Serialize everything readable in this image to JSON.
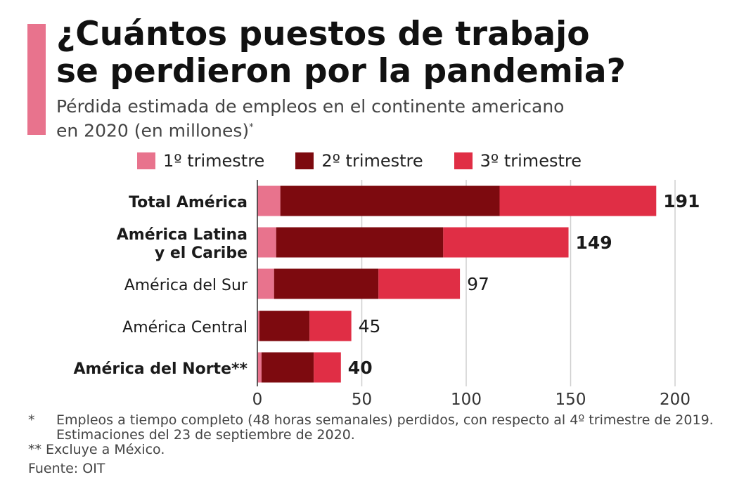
{
  "header": {
    "title_line1": "¿Cuántos puestos de trabajo",
    "title_line2": "se perdieron por la pandemia?",
    "subtitle_line1": "Pérdida estimada de empleos en el continente americano",
    "subtitle_line2": "en 2020 (en millones)",
    "subtitle_mark": "*"
  },
  "colors": {
    "accent": "#e8738d",
    "q1": "#e8738d",
    "q2": "#7d0a0f",
    "q3": "#e02e45",
    "grid": "#cfcfcf"
  },
  "legend": [
    {
      "label": "1º trimestre",
      "color": "#e8738d"
    },
    {
      "label": "2º trimestre",
      "color": "#7d0a0f"
    },
    {
      "label": "3º trimestre",
      "color": "#e02e45"
    }
  ],
  "chart_data": {
    "type": "bar",
    "orientation": "horizontal",
    "stacked": true,
    "categories": [
      {
        "label": [
          "Total América"
        ],
        "bold": true
      },
      {
        "label": [
          "América Latina",
          "y el Caribe"
        ],
        "bold": true
      },
      {
        "label": [
          "América del Sur"
        ],
        "bold": false
      },
      {
        "label": [
          "América Central"
        ],
        "bold": false
      },
      {
        "label": [
          "América del Norte**"
        ],
        "bold": true
      }
    ],
    "series": [
      {
        "name": "1º trimestre",
        "values": [
          11,
          9,
          8,
          1,
          2
        ]
      },
      {
        "name": "2º trimestre",
        "values": [
          105,
          80,
          50,
          24,
          25
        ]
      },
      {
        "name": "3º trimestre",
        "values": [
          75,
          60,
          39,
          20,
          13
        ]
      }
    ],
    "totals": [
      "191",
      "149",
      "97",
      "45",
      "40"
    ],
    "totals_bold": [
      true,
      true,
      false,
      false,
      true
    ],
    "xlim": [
      0,
      200
    ],
    "xticks": [
      "0",
      "50",
      "100",
      "150",
      "200"
    ],
    "xtick_values": [
      0,
      50,
      100,
      150,
      200
    ],
    "grid": true
  },
  "footnotes": {
    "note1_mark": "*",
    "note1_text": "Empleos a tiempo completo (48 horas semanales) perdidos, con respecto al 4º trimestre de 2019. Estimaciones del 23 de septiembre de 2020.",
    "note2_mark": "**",
    "note2_text": "Excluye a México.",
    "source": "Fuente: OIT"
  }
}
